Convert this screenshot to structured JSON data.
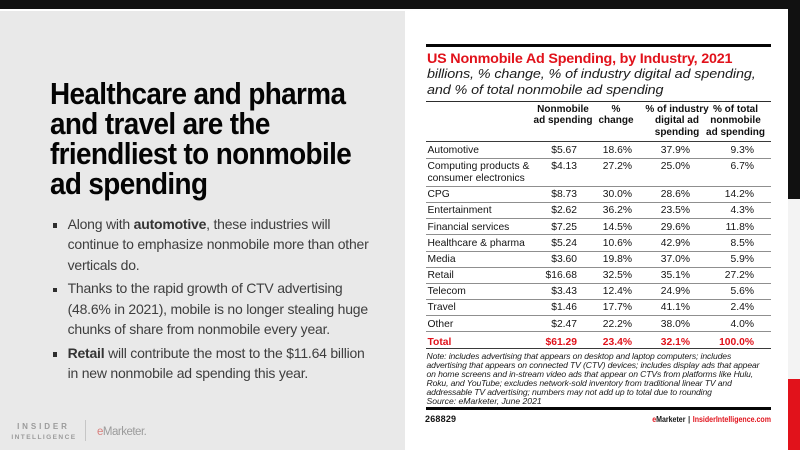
{
  "colors": {
    "accent_red": "#e1121b",
    "bar_black": "#111111",
    "panel_gray": "#e9e9e9",
    "strip_gray": "#f3f3f3",
    "logo_gray": "#9b9b9b"
  },
  "left": {
    "headline": "Healthcare and pharma\nand travel are the\nfriendliest to nonmobile\nad spending",
    "bullets": [
      {
        "segments": [
          {
            "text": "Along with ",
            "bold": false
          },
          {
            "text": "automotive",
            "bold": true
          },
          {
            "text": ", these industries will\ncontinue to emphasize nonmobile more than other\nverticals do.",
            "bold": false
          }
        ]
      },
      {
        "segments": [
          {
            "text": "Thanks to the rapid growth of CTV advertising\n(48.6% in 2021), mobile is no longer stealing huge\nchunks of share from nonmobile every year.",
            "bold": false
          }
        ]
      },
      {
        "segments": [
          {
            "text": "Retail",
            "bold": true
          },
          {
            "text": " will contribute the most to the $11.64 billion\nin new nonmobile ad spending this year.",
            "bold": false
          }
        ]
      }
    ],
    "logo": {
      "insider": "INSIDER",
      "intelligence": "INTELLIGENCE",
      "emarketer_e": "e",
      "emarketer_rest": "Marketer."
    }
  },
  "chart": {
    "title": "US Nonmobile Ad Spending, by Industry, 2021",
    "subtitle": "billions, % change, % of industry digital ad spending,\nand % of total nonmobile ad spending",
    "note": "Note: includes advertising that appears on desktop and laptop computers; includes\nadvertising that appears on connected TV (CTV) devices; includes display ads that appear\non home screens and in-stream video ads that appear on CTVs from platforms like Hulu,\nRoku, and YouTube; excludes network-sold inventory from traditional linear TV and\naddressable TV advertising; numbers may not add up to total due to rounding",
    "source": "Source: eMarketer, June 2021",
    "footer_id": "268829",
    "footer_brand_red": "e",
    "footer_brand_rest": "Marketer",
    "footer_separator": "|",
    "footer_site": "InsiderIntelligence.com"
  },
  "chart_data": {
    "type": "table",
    "columns": [
      "Nonmobile\nad spending",
      "%\nchange",
      "% of industry\ndigital ad\nspending",
      "% of total\nnonmobile\nad spending"
    ],
    "rows": [
      {
        "label": "Automotive",
        "values": [
          "$5.67",
          "18.6%",
          "37.9%",
          "9.3%"
        ]
      },
      {
        "label": "Computing products &\nconsumer electronics",
        "values": [
          "$4.13",
          "27.2%",
          "25.0%",
          "6.7%"
        ]
      },
      {
        "label": "CPG",
        "values": [
          "$8.73",
          "30.0%",
          "28.6%",
          "14.2%"
        ]
      },
      {
        "label": "Entertainment",
        "values": [
          "$2.62",
          "36.2%",
          "23.5%",
          "4.3%"
        ]
      },
      {
        "label": "Financial services",
        "values": [
          "$7.25",
          "14.5%",
          "29.6%",
          "11.8%"
        ]
      },
      {
        "label": "Healthcare & pharma",
        "values": [
          "$5.24",
          "10.6%",
          "42.9%",
          "8.5%"
        ]
      },
      {
        "label": "Media",
        "values": [
          "$3.60",
          "19.8%",
          "37.0%",
          "5.9%"
        ]
      },
      {
        "label": "Retail",
        "values": [
          "$16.68",
          "32.5%",
          "35.1%",
          "27.2%"
        ]
      },
      {
        "label": "Telecom",
        "values": [
          "$3.43",
          "12.4%",
          "24.9%",
          "5.6%"
        ]
      },
      {
        "label": "Travel",
        "values": [
          "$1.46",
          "17.7%",
          "41.1%",
          "2.4%"
        ]
      },
      {
        "label": "Other",
        "values": [
          "$2.47",
          "22.2%",
          "38.0%",
          "4.0%"
        ]
      },
      {
        "label": "Total",
        "values": [
          "$61.29",
          "23.4%",
          "32.1%",
          "100.0%"
        ],
        "total": true
      }
    ],
    "layout": {
      "header_centers_x": [
        137,
        190,
        251,
        309.5
      ],
      "value_right_offsets": [
        194,
        139,
        81,
        17
      ],
      "row_height_single": 16.2,
      "row_height_double": 28.2,
      "row_height_total": 16.8
    }
  }
}
